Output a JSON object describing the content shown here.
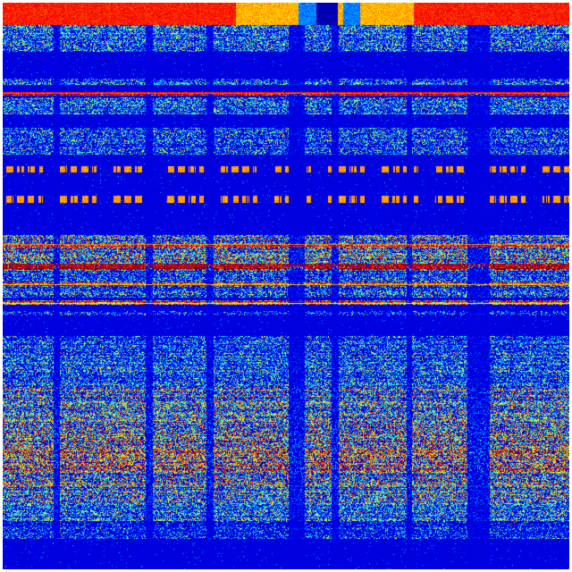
{
  "heatmap": {
    "colormap": [
      "#00007f",
      "#0000ff",
      "#007fff",
      "#00ffff",
      "#7fff7f",
      "#ffff00",
      "#ff7f00",
      "#ff0000",
      "#7f0000"
    ],
    "background": "#00008f"
  }
}
